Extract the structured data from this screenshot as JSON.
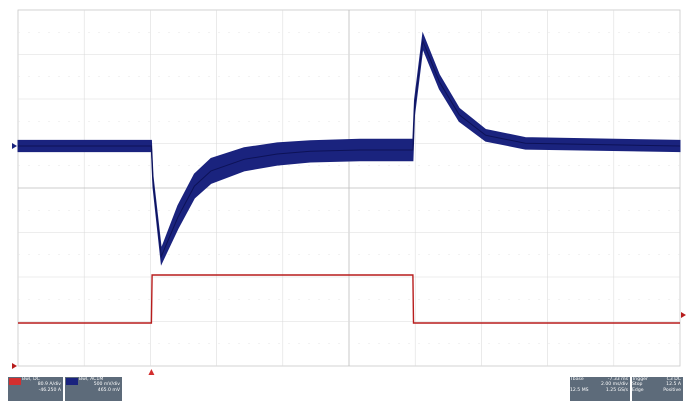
{
  "chart_data": {
    "type": "line",
    "title": "",
    "xlabel": "",
    "ylabel": "",
    "grid": true,
    "divisions": {
      "x": 10,
      "y": 8
    },
    "x_unit": "ms",
    "xlim": [
      -7.33,
      12.67
    ],
    "series": [
      {
        "channel": "C1",
        "color": "#1a237e",
        "band_unit": "mV",
        "points": [
          [
            -7.33,
            0
          ],
          [
            -3.3,
            0
          ],
          [
            -3.25,
            -400
          ],
          [
            -3.0,
            -1240
          ],
          [
            -2.5,
            -800
          ],
          [
            -2.0,
            -450
          ],
          [
            -1.5,
            -280
          ],
          [
            -0.5,
            -150
          ],
          [
            0.5,
            -90
          ],
          [
            1.5,
            -60
          ],
          [
            3.0,
            -45
          ],
          [
            4.6,
            -45
          ],
          [
            4.65,
            430
          ],
          [
            4.9,
            1180
          ],
          [
            5.4,
            720
          ],
          [
            6.0,
            350
          ],
          [
            6.8,
            120
          ],
          [
            8.0,
            30
          ],
          [
            12.67,
            0
          ]
        ],
        "band": [
          [
            -7.33,
            125
          ],
          [
            -3.3,
            125
          ],
          [
            -3.25,
            125
          ],
          [
            -2.5,
            260
          ],
          [
            -1.5,
            280
          ],
          [
            -0.5,
            260
          ],
          [
            1.5,
            240
          ],
          [
            4.6,
            240
          ],
          [
            4.65,
            170
          ],
          [
            5.4,
            160
          ],
          [
            6.8,
            130
          ],
          [
            12.67,
            125
          ]
        ]
      },
      {
        "channel": "C4",
        "color": "#b71c1c",
        "unit": "A",
        "points": [
          [
            -7.33,
            0.1
          ],
          [
            -3.3,
            0.1
          ],
          [
            -3.28,
            1.0
          ],
          [
            4.6,
            1.0
          ],
          [
            4.62,
            0.1
          ],
          [
            12.67,
            0.1
          ]
        ]
      }
    ]
  },
  "footer": {
    "ch1": {
      "label": "C1",
      "line1": "Bwl,",
      "line2": "DC",
      "line3": "80.9 A/div",
      "line4": "-46.250 A"
    },
    "ch4": {
      "label": "C4",
      "line1": "Bwl,",
      "line2": "AC1M",
      "line3": "500 mV/div",
      "line4": "465.0 mV"
    },
    "timebase": {
      "label": "Tbase",
      "value": "-7.33 ms",
      "line2": "2.00 ms/div",
      "line3": "12.5 MS",
      "line4": "1.25 GS/s"
    },
    "trigger": {
      "label": "Trigger",
      "value": "C3 DC",
      "line2": "Stop",
      "line2b": "12.5 A",
      "line3": "Edge",
      "line3b": "Positive"
    }
  }
}
